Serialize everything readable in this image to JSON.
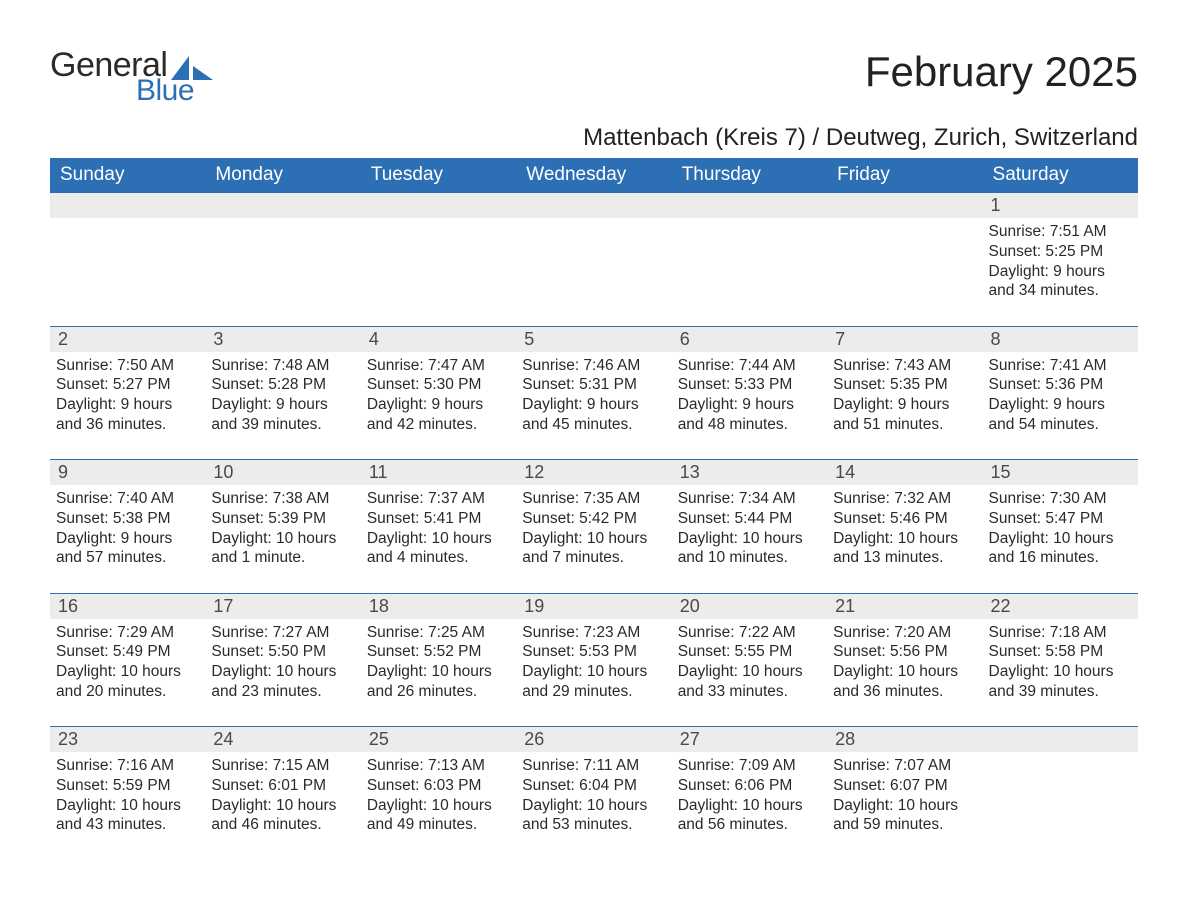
{
  "brand": {
    "word1": "General",
    "word2": "Blue",
    "accent_color": "#2d6fb4"
  },
  "title": "February 2025",
  "location": "Mattenbach (Kreis 7) / Deutweg, Zurich, Switzerland",
  "colors": {
    "header_bg": "#2d6fb4",
    "header_text": "#ffffff",
    "daynum_bg": "#ececec",
    "rule": "#2d6fb4",
    "body_text": "#222222"
  },
  "weekdays": [
    "Sunday",
    "Monday",
    "Tuesday",
    "Wednesday",
    "Thursday",
    "Friday",
    "Saturday"
  ],
  "weeks": [
    [
      null,
      null,
      null,
      null,
      null,
      null,
      {
        "n": "1",
        "sunrise": "7:51 AM",
        "sunset": "5:25 PM",
        "daylight": "9 hours and 34 minutes."
      }
    ],
    [
      {
        "n": "2",
        "sunrise": "7:50 AM",
        "sunset": "5:27 PM",
        "daylight": "9 hours and 36 minutes."
      },
      {
        "n": "3",
        "sunrise": "7:48 AM",
        "sunset": "5:28 PM",
        "daylight": "9 hours and 39 minutes."
      },
      {
        "n": "4",
        "sunrise": "7:47 AM",
        "sunset": "5:30 PM",
        "daylight": "9 hours and 42 minutes."
      },
      {
        "n": "5",
        "sunrise": "7:46 AM",
        "sunset": "5:31 PM",
        "daylight": "9 hours and 45 minutes."
      },
      {
        "n": "6",
        "sunrise": "7:44 AM",
        "sunset": "5:33 PM",
        "daylight": "9 hours and 48 minutes."
      },
      {
        "n": "7",
        "sunrise": "7:43 AM",
        "sunset": "5:35 PM",
        "daylight": "9 hours and 51 minutes."
      },
      {
        "n": "8",
        "sunrise": "7:41 AM",
        "sunset": "5:36 PM",
        "daylight": "9 hours and 54 minutes."
      }
    ],
    [
      {
        "n": "9",
        "sunrise": "7:40 AM",
        "sunset": "5:38 PM",
        "daylight": "9 hours and 57 minutes."
      },
      {
        "n": "10",
        "sunrise": "7:38 AM",
        "sunset": "5:39 PM",
        "daylight": "10 hours and 1 minute."
      },
      {
        "n": "11",
        "sunrise": "7:37 AM",
        "sunset": "5:41 PM",
        "daylight": "10 hours and 4 minutes."
      },
      {
        "n": "12",
        "sunrise": "7:35 AM",
        "sunset": "5:42 PM",
        "daylight": "10 hours and 7 minutes."
      },
      {
        "n": "13",
        "sunrise": "7:34 AM",
        "sunset": "5:44 PM",
        "daylight": "10 hours and 10 minutes."
      },
      {
        "n": "14",
        "sunrise": "7:32 AM",
        "sunset": "5:46 PM",
        "daylight": "10 hours and 13 minutes."
      },
      {
        "n": "15",
        "sunrise": "7:30 AM",
        "sunset": "5:47 PM",
        "daylight": "10 hours and 16 minutes."
      }
    ],
    [
      {
        "n": "16",
        "sunrise": "7:29 AM",
        "sunset": "5:49 PM",
        "daylight": "10 hours and 20 minutes."
      },
      {
        "n": "17",
        "sunrise": "7:27 AM",
        "sunset": "5:50 PM",
        "daylight": "10 hours and 23 minutes."
      },
      {
        "n": "18",
        "sunrise": "7:25 AM",
        "sunset": "5:52 PM",
        "daylight": "10 hours and 26 minutes."
      },
      {
        "n": "19",
        "sunrise": "7:23 AM",
        "sunset": "5:53 PM",
        "daylight": "10 hours and 29 minutes."
      },
      {
        "n": "20",
        "sunrise": "7:22 AM",
        "sunset": "5:55 PM",
        "daylight": "10 hours and 33 minutes."
      },
      {
        "n": "21",
        "sunrise": "7:20 AM",
        "sunset": "5:56 PM",
        "daylight": "10 hours and 36 minutes."
      },
      {
        "n": "22",
        "sunrise": "7:18 AM",
        "sunset": "5:58 PM",
        "daylight": "10 hours and 39 minutes."
      }
    ],
    [
      {
        "n": "23",
        "sunrise": "7:16 AM",
        "sunset": "5:59 PM",
        "daylight": "10 hours and 43 minutes."
      },
      {
        "n": "24",
        "sunrise": "7:15 AM",
        "sunset": "6:01 PM",
        "daylight": "10 hours and 46 minutes."
      },
      {
        "n": "25",
        "sunrise": "7:13 AM",
        "sunset": "6:03 PM",
        "daylight": "10 hours and 49 minutes."
      },
      {
        "n": "26",
        "sunrise": "7:11 AM",
        "sunset": "6:04 PM",
        "daylight": "10 hours and 53 minutes."
      },
      {
        "n": "27",
        "sunrise": "7:09 AM",
        "sunset": "6:06 PM",
        "daylight": "10 hours and 56 minutes."
      },
      {
        "n": "28",
        "sunrise": "7:07 AM",
        "sunset": "6:07 PM",
        "daylight": "10 hours and 59 minutes."
      },
      null
    ]
  ],
  "labels": {
    "sunrise": "Sunrise: ",
    "sunset": "Sunset: ",
    "daylight": "Daylight: "
  }
}
